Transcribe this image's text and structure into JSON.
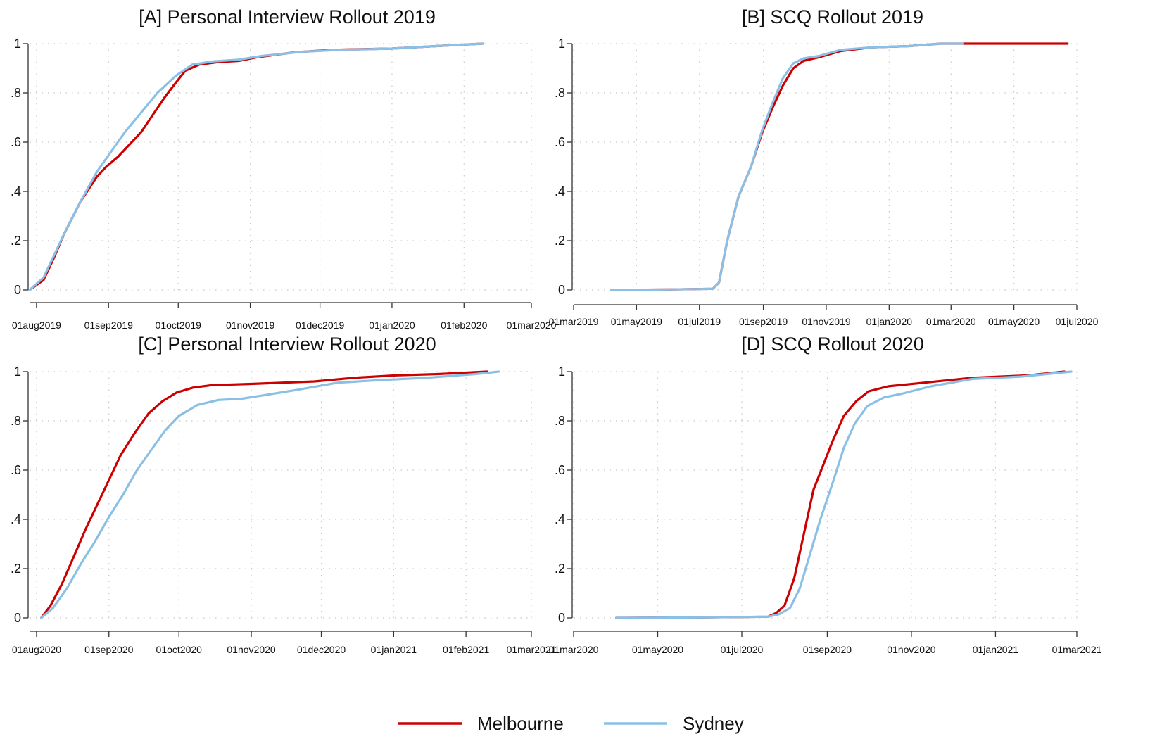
{
  "legend": [
    {
      "name": "Melbourne",
      "color": "#cc0000"
    },
    {
      "name": "Sydney",
      "color": "#8ac0e6"
    }
  ],
  "chart_data": [
    {
      "type": "line",
      "title": "[A] Personal Interview Rollout 2019",
      "xlabel": "",
      "ylabel": "",
      "xlim": [
        "2019-07-29",
        "2020-03-01"
      ],
      "ylim": [
        0,
        1
      ],
      "x_ticks": [
        "01aug2019",
        "01sep2019",
        "01oct2019",
        "01nov2019",
        "01dec2019",
        "01jan2020",
        "01feb2020",
        "01mar2020"
      ],
      "y_ticks": [
        {
          "value": 0,
          "label": "0"
        },
        {
          "value": 0.2,
          "label": ".2"
        },
        {
          "value": 0.4,
          "label": ".4"
        },
        {
          "value": 0.6,
          "label": ".6"
        },
        {
          "value": 0.8,
          "label": ".8"
        },
        {
          "value": 1,
          "label": "1"
        }
      ],
      "grid": true,
      "series": [
        {
          "name": "Melbourne",
          "points": [
            [
              "2019-07-29",
              0.0
            ],
            [
              "2019-08-04",
              0.04
            ],
            [
              "2019-08-08",
              0.12
            ],
            [
              "2019-08-13",
              0.23
            ],
            [
              "2019-08-20",
              0.36
            ],
            [
              "2019-08-27",
              0.46
            ],
            [
              "2019-08-31",
              0.5
            ],
            [
              "2019-09-05",
              0.54
            ],
            [
              "2019-09-10",
              0.59
            ],
            [
              "2019-09-15",
              0.64
            ],
            [
              "2019-09-20",
              0.71
            ],
            [
              "2019-09-25",
              0.78
            ],
            [
              "2019-09-29",
              0.83
            ],
            [
              "2019-10-04",
              0.89
            ],
            [
              "2019-10-10",
              0.915
            ],
            [
              "2019-10-18",
              0.925
            ],
            [
              "2019-10-27",
              0.93
            ],
            [
              "2019-11-04",
              0.945
            ],
            [
              "2019-11-20",
              0.965
            ],
            [
              "2019-12-06",
              0.975
            ],
            [
              "2020-01-01",
              0.98
            ],
            [
              "2020-01-20",
              0.99
            ],
            [
              "2020-02-09",
              1.0
            ]
          ]
        },
        {
          "name": "Sydney",
          "points": [
            [
              "2019-07-29",
              0.0
            ],
            [
              "2019-08-04",
              0.05
            ],
            [
              "2019-08-08",
              0.13
            ],
            [
              "2019-08-13",
              0.23
            ],
            [
              "2019-08-20",
              0.36
            ],
            [
              "2019-08-27",
              0.48
            ],
            [
              "2019-09-02",
              0.56
            ],
            [
              "2019-09-08",
              0.64
            ],
            [
              "2019-09-15",
              0.72
            ],
            [
              "2019-09-22",
              0.8
            ],
            [
              "2019-09-30",
              0.87
            ],
            [
              "2019-10-07",
              0.915
            ],
            [
              "2019-10-16",
              0.928
            ],
            [
              "2019-10-27",
              0.935
            ],
            [
              "2019-11-06",
              0.95
            ],
            [
              "2019-11-23",
              0.967
            ],
            [
              "2019-12-10",
              0.975
            ],
            [
              "2020-01-01",
              0.98
            ],
            [
              "2020-01-20",
              0.99
            ],
            [
              "2020-02-09",
              1.0
            ]
          ]
        }
      ]
    },
    {
      "type": "line",
      "title": "[B] SCQ Rollout 2019",
      "xlabel": "",
      "ylabel": "",
      "xlim": [
        "2019-03-01",
        "2020-07-01"
      ],
      "ylim": [
        0,
        1
      ],
      "x_ticks": [
        "01mar2019",
        "01may2019",
        "01jul2019",
        "01sep2019",
        "01nov2019",
        "01jan2020",
        "01mar2020",
        "01may2020",
        "01jul2020"
      ],
      "y_ticks": [
        {
          "value": 0,
          "label": "0"
        },
        {
          "value": 0.2,
          "label": ".2"
        },
        {
          "value": 0.4,
          "label": ".4"
        },
        {
          "value": 0.6,
          "label": ".6"
        },
        {
          "value": 0.8,
          "label": ".8"
        },
        {
          "value": 1,
          "label": "1"
        }
      ],
      "grid": true,
      "series": [
        {
          "name": "Melbourne",
          "points": [
            [
              "2019-04-06",
              0.0
            ],
            [
              "2019-06-01",
              0.002
            ],
            [
              "2019-07-14",
              0.005
            ],
            [
              "2019-07-20",
              0.03
            ],
            [
              "2019-07-28",
              0.2
            ],
            [
              "2019-08-08",
              0.38
            ],
            [
              "2019-08-20",
              0.5
            ],
            [
              "2019-08-31",
              0.64
            ],
            [
              "2019-09-10",
              0.74
            ],
            [
              "2019-09-20",
              0.83
            ],
            [
              "2019-09-30",
              0.9
            ],
            [
              "2019-10-10",
              0.93
            ],
            [
              "2019-10-25",
              0.945
            ],
            [
              "2019-11-15",
              0.97
            ],
            [
              "2019-12-15",
              0.985
            ],
            [
              "2020-01-20",
              0.99
            ],
            [
              "2020-02-20",
              1.0
            ],
            [
              "2020-06-22",
              1.0
            ]
          ]
        },
        {
          "name": "Sydney",
          "points": [
            [
              "2019-04-06",
              0.0
            ],
            [
              "2019-06-01",
              0.002
            ],
            [
              "2019-07-14",
              0.005
            ],
            [
              "2019-07-20",
              0.03
            ],
            [
              "2019-07-28",
              0.2
            ],
            [
              "2019-08-08",
              0.38
            ],
            [
              "2019-08-20",
              0.5
            ],
            [
              "2019-08-31",
              0.65
            ],
            [
              "2019-09-10",
              0.76
            ],
            [
              "2019-09-20",
              0.86
            ],
            [
              "2019-09-30",
              0.92
            ],
            [
              "2019-10-10",
              0.94
            ],
            [
              "2019-10-25",
              0.95
            ],
            [
              "2019-11-15",
              0.975
            ],
            [
              "2019-12-15",
              0.985
            ],
            [
              "2020-01-20",
              0.99
            ],
            [
              "2020-02-20",
              1.0
            ],
            [
              "2020-03-12",
              1.0
            ]
          ]
        }
      ]
    },
    {
      "type": "line",
      "title": "[C] Personal Interview Rollout 2020",
      "xlabel": "",
      "ylabel": "",
      "xlim": [
        "2020-07-29",
        "2021-03-01"
      ],
      "ylim": [
        0,
        1
      ],
      "x_ticks": [
        "01aug2020",
        "01sep2020",
        "01oct2020",
        "01nov2020",
        "01dec2020",
        "01jan2021",
        "01feb2021",
        "01mar2021"
      ],
      "y_ticks": [
        {
          "value": 0,
          "label": "0"
        },
        {
          "value": 0.2,
          "label": ".2"
        },
        {
          "value": 0.4,
          "label": ".4"
        },
        {
          "value": 0.6,
          "label": ".6"
        },
        {
          "value": 0.8,
          "label": ".8"
        },
        {
          "value": 1,
          "label": "1"
        }
      ],
      "grid": true,
      "series": [
        {
          "name": "Melbourne",
          "points": [
            [
              "2020-08-03",
              0.0
            ],
            [
              "2020-08-07",
              0.05
            ],
            [
              "2020-08-12",
              0.14
            ],
            [
              "2020-08-17",
              0.25
            ],
            [
              "2020-08-22",
              0.36
            ],
            [
              "2020-08-27",
              0.46
            ],
            [
              "2020-09-01",
              0.56
            ],
            [
              "2020-09-06",
              0.66
            ],
            [
              "2020-09-12",
              0.75
            ],
            [
              "2020-09-18",
              0.83
            ],
            [
              "2020-09-24",
              0.88
            ],
            [
              "2020-09-30",
              0.915
            ],
            [
              "2020-10-07",
              0.935
            ],
            [
              "2020-10-15",
              0.945
            ],
            [
              "2020-11-01",
              0.95
            ],
            [
              "2020-11-28",
              0.96
            ],
            [
              "2020-12-15",
              0.975
            ],
            [
              "2021-01-02",
              0.985
            ],
            [
              "2021-01-20",
              0.99
            ],
            [
              "2021-02-10",
              1.0
            ]
          ]
        },
        {
          "name": "Sydney",
          "points": [
            [
              "2020-08-03",
              0.0
            ],
            [
              "2020-08-08",
              0.04
            ],
            [
              "2020-08-14",
              0.12
            ],
            [
              "2020-08-20",
              0.22
            ],
            [
              "2020-08-26",
              0.31
            ],
            [
              "2020-09-01",
              0.41
            ],
            [
              "2020-09-07",
              0.5
            ],
            [
              "2020-09-13",
              0.6
            ],
            [
              "2020-09-19",
              0.68
            ],
            [
              "2020-09-25",
              0.76
            ],
            [
              "2020-10-01",
              0.82
            ],
            [
              "2020-10-09",
              0.865
            ],
            [
              "2020-10-18",
              0.885
            ],
            [
              "2020-10-28",
              0.89
            ],
            [
              "2020-11-07",
              0.905
            ],
            [
              "2020-11-20",
              0.925
            ],
            [
              "2020-12-08",
              0.955
            ],
            [
              "2020-12-25",
              0.965
            ],
            [
              "2021-01-15",
              0.975
            ],
            [
              "2021-02-05",
              0.99
            ],
            [
              "2021-02-15",
              1.0
            ]
          ]
        }
      ]
    },
    {
      "type": "line",
      "title": "[D] SCQ Rollout 2020",
      "xlabel": "",
      "ylabel": "",
      "xlim": [
        "2020-03-01",
        "2021-03-01"
      ],
      "ylim": [
        0,
        1
      ],
      "x_ticks": [
        "01mar2020",
        "01may2020",
        "01jul2020",
        "01sep2020",
        "01nov2020",
        "01jan2021",
        "01mar2021"
      ],
      "y_ticks": [
        {
          "value": 0,
          "label": "0"
        },
        {
          "value": 0.2,
          "label": ".2"
        },
        {
          "value": 0.4,
          "label": ".4"
        },
        {
          "value": 0.6,
          "label": ".6"
        },
        {
          "value": 0.8,
          "label": ".8"
        },
        {
          "value": 1,
          "label": "1"
        }
      ],
      "grid": true,
      "series": [
        {
          "name": "Melbourne",
          "points": [
            [
              "2020-04-01",
              0.0
            ],
            [
              "2020-06-01",
              0.002
            ],
            [
              "2020-07-20",
              0.005
            ],
            [
              "2020-07-26",
              0.02
            ],
            [
              "2020-08-01",
              0.05
            ],
            [
              "2020-08-08",
              0.16
            ],
            [
              "2020-08-15",
              0.34
            ],
            [
              "2020-08-22",
              0.52
            ],
            [
              "2020-08-29",
              0.62
            ],
            [
              "2020-09-05",
              0.72
            ],
            [
              "2020-09-13",
              0.82
            ],
            [
              "2020-09-22",
              0.88
            ],
            [
              "2020-10-01",
              0.92
            ],
            [
              "2020-10-15",
              0.94
            ],
            [
              "2020-11-10",
              0.955
            ],
            [
              "2020-12-15",
              0.975
            ],
            [
              "2021-01-25",
              0.985
            ],
            [
              "2021-02-20",
              1.0
            ]
          ]
        },
        {
          "name": "Sydney",
          "points": [
            [
              "2020-04-01",
              0.0
            ],
            [
              "2020-06-01",
              0.002
            ],
            [
              "2020-07-20",
              0.005
            ],
            [
              "2020-07-28",
              0.015
            ],
            [
              "2020-08-05",
              0.04
            ],
            [
              "2020-08-12",
              0.12
            ],
            [
              "2020-08-19",
              0.25
            ],
            [
              "2020-08-27",
              0.4
            ],
            [
              "2020-09-05",
              0.55
            ],
            [
              "2020-09-13",
              0.69
            ],
            [
              "2020-09-21",
              0.79
            ],
            [
              "2020-09-30",
              0.86
            ],
            [
              "2020-10-12",
              0.895
            ],
            [
              "2020-10-25",
              0.91
            ],
            [
              "2020-11-15",
              0.94
            ],
            [
              "2020-12-15",
              0.97
            ],
            [
              "2021-01-20",
              0.98
            ],
            [
              "2021-02-25",
              1.0
            ]
          ]
        }
      ]
    }
  ]
}
